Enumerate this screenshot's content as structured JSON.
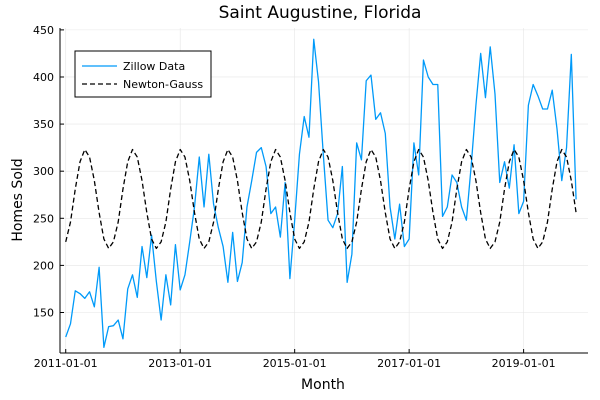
{
  "chart_data": {
    "type": "line",
    "title": "Saint Augustine, Florida",
    "xlabel": "Month",
    "ylabel": "Homes Sold",
    "x_start": "2011-01",
    "x_end": "2019-12",
    "x_ticks": [
      "2011-01-01",
      "2013-01-01",
      "2015-01-01",
      "2017-01-01",
      "2019-01-01"
    ],
    "ylim": [
      107,
      452
    ],
    "y_ticks": [
      150,
      200,
      250,
      300,
      350,
      400,
      450
    ],
    "grid": true,
    "legend_position": "top-left",
    "series": [
      {
        "name": "Zillow Data",
        "color": "#009af9",
        "style": "solid",
        "months": [
          "2011-01",
          "2011-02",
          "2011-03",
          "2011-04",
          "2011-05",
          "2011-06",
          "2011-07",
          "2011-08",
          "2011-09",
          "2011-10",
          "2011-11",
          "2011-12",
          "2012-01",
          "2012-02",
          "2012-03",
          "2012-04",
          "2012-05",
          "2012-06",
          "2012-07",
          "2012-08",
          "2012-09",
          "2012-10",
          "2012-11",
          "2012-12",
          "2013-01",
          "2013-02",
          "2013-03",
          "2013-04",
          "2013-05",
          "2013-06",
          "2013-07",
          "2013-08",
          "2013-09",
          "2013-10",
          "2013-11",
          "2013-12",
          "2014-01",
          "2014-02",
          "2014-03",
          "2014-04",
          "2014-05",
          "2014-06",
          "2014-07",
          "2014-08",
          "2014-09",
          "2014-10",
          "2014-11",
          "2014-12",
          "2015-01",
          "2015-02",
          "2015-03",
          "2015-04",
          "2015-05",
          "2015-06",
          "2015-07",
          "2015-08",
          "2015-09",
          "2015-10",
          "2015-11",
          "2015-12",
          "2016-01",
          "2016-02",
          "2016-03",
          "2016-04",
          "2016-05",
          "2016-06",
          "2016-07",
          "2016-08",
          "2016-09",
          "2016-10",
          "2016-11",
          "2016-12",
          "2017-01",
          "2017-02",
          "2017-03",
          "2017-04",
          "2017-05",
          "2017-06",
          "2017-07",
          "2017-08",
          "2017-09",
          "2017-10",
          "2017-11",
          "2017-12",
          "2018-01",
          "2018-02",
          "2018-03",
          "2018-04",
          "2018-05",
          "2018-06",
          "2018-07",
          "2018-08",
          "2018-09",
          "2018-10",
          "2018-11",
          "2018-12",
          "2019-01",
          "2019-02",
          "2019-03",
          "2019-04",
          "2019-05",
          "2019-06",
          "2019-07",
          "2019-08",
          "2019-09",
          "2019-10",
          "2019-11",
          "2019-12"
        ],
        "values": [
          124,
          138,
          173,
          170,
          165,
          172,
          156,
          198,
          113,
          135,
          136,
          142,
          122,
          175,
          190,
          166,
          220,
          187,
          232,
          183,
          142,
          190,
          158,
          222,
          174,
          190,
          225,
          262,
          315,
          262,
          318,
          265,
          240,
          220,
          182,
          235,
          183,
          203,
          262,
          290,
          320,
          325,
          305,
          255,
          262,
          230,
          288,
          186,
          248,
          318,
          358,
          336,
          440,
          395,
          318,
          248,
          240,
          255,
          305,
          182,
          212,
          330,
          312,
          396,
          402,
          355,
          362,
          340,
          262,
          228,
          265,
          220,
          228,
          330,
          296,
          418,
          400,
          392,
          392,
          252,
          262,
          296,
          288,
          262,
          248,
          305,
          370,
          425,
          378,
          432,
          382,
          288,
          310,
          282,
          328,
          255,
          268,
          370,
          392,
          380,
          366,
          366,
          386,
          345,
          290,
          325,
          424,
          270
        ]
      },
      {
        "name": "Newton-Gauss",
        "color": "#000000",
        "style": "dashed",
        "model_note_hidden": false,
        "months_from": "2011-01",
        "values": [
          225,
          246,
          281,
          310,
          323,
          315,
          290,
          256,
          228,
          218,
          225,
          246,
          281,
          310,
          323,
          315,
          290,
          256,
          228,
          218,
          225,
          246,
          281,
          310,
          323,
          315,
          290,
          256,
          228,
          218,
          225,
          246,
          281,
          310,
          323,
          315,
          290,
          256,
          228,
          218,
          225,
          246,
          281,
          310,
          323,
          315,
          290,
          256,
          228,
          218,
          225,
          246,
          281,
          310,
          323,
          315,
          290,
          256,
          228,
          218,
          225,
          246,
          281,
          310,
          323,
          315,
          290,
          256,
          228,
          218,
          225,
          246,
          281,
          310,
          323,
          315,
          290,
          256,
          228,
          218,
          225,
          246,
          281,
          310,
          323,
          315,
          290,
          256,
          228,
          218,
          225,
          246,
          281,
          310,
          323,
          315,
          290,
          256,
          228,
          218,
          225,
          246,
          281,
          310,
          323,
          315,
          290,
          256
        ]
      }
    ]
  }
}
